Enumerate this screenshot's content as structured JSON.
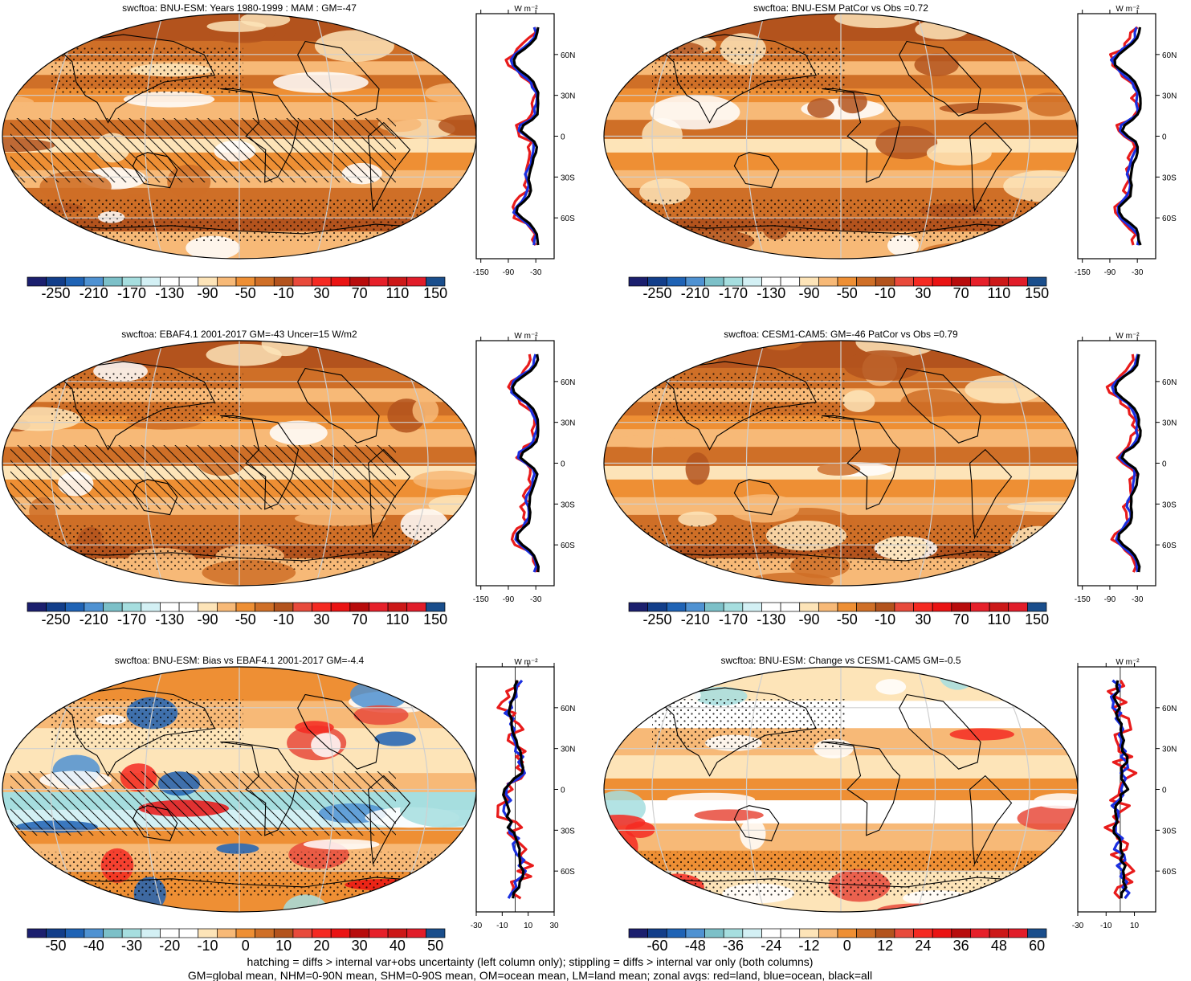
{
  "palettes": {
    "abs": [
      "#1b1f6e",
      "#123e8a",
      "#1f63b5",
      "#4f92d2",
      "#7cc0c8",
      "#a6dedf",
      "#d3f0f4",
      "#ffffff",
      "#ffffff",
      "#fde4b8",
      "#f7b977",
      "#ee8f34",
      "#cf6f27",
      "#b3531d",
      "#e84a3b",
      "#f52a22",
      "#ea1313",
      "#b80c0c",
      "#e6202a",
      "#cc1818",
      "#e11d2a",
      "#1a4e8c"
    ],
    "diff": [
      "#1b1f6e",
      "#123e8a",
      "#1f63b5",
      "#4f92d2",
      "#7cc0c8",
      "#a6dedf",
      "#d3f0f4",
      "#ffffff",
      "#ffffff",
      "#fde4b8",
      "#f7b977",
      "#ee8f34",
      "#cf6f27",
      "#b3531d",
      "#e84a3b",
      "#f52a22",
      "#ea1313",
      "#b80c0c",
      "#e6202a",
      "#cc1818",
      "#e11d2a",
      "#1a4e8c"
    ]
  },
  "panels": [
    {
      "title": "swcftoa: BNU-ESM: Years 1980-1999 : MAM : GM=-47",
      "palette": "abs",
      "hatch": true,
      "stipple": true,
      "kind": "abs",
      "cbar": [
        "-250",
        "-210",
        "-170",
        "-130",
        "-90",
        "-50",
        "-10",
        "30",
        "70",
        "110",
        "150"
      ],
      "zonal_ticks": [
        "-150",
        "-90",
        "-30"
      ],
      "zlim": [
        -160,
        10
      ]
    },
    {
      "title": "swcftoa: BNU-ESM PatCor vs Obs =0.72",
      "palette": "abs",
      "hatch": false,
      "stipple": true,
      "kind": "abs",
      "cbar": [
        "-250",
        "-210",
        "-170",
        "-130",
        "-90",
        "-50",
        "-10",
        "30",
        "70",
        "110",
        "150"
      ],
      "zonal_ticks": [
        "-150",
        "-90",
        "-30"
      ],
      "zlim": [
        -160,
        10
      ]
    },
    {
      "title": "swcftoa: EBAF4.1 2001-2017 GM=-43 Uncer=15 W/m2",
      "palette": "abs",
      "hatch": true,
      "stipple": true,
      "kind": "abs",
      "cbar": [
        "-250",
        "-210",
        "-170",
        "-130",
        "-90",
        "-50",
        "-10",
        "30",
        "70",
        "110",
        "150"
      ],
      "zonal_ticks": [
        "-150",
        "-90",
        "-30"
      ],
      "zlim": [
        -160,
        10
      ]
    },
    {
      "title": "swcftoa: CESM1-CAM5: GM=-46 PatCor vs Obs =0.79",
      "palette": "abs",
      "hatch": false,
      "stipple": true,
      "kind": "abs",
      "cbar": [
        "-250",
        "-210",
        "-170",
        "-130",
        "-90",
        "-50",
        "-10",
        "30",
        "70",
        "110",
        "150"
      ],
      "zonal_ticks": [
        "-150",
        "-90",
        "-30"
      ],
      "zlim": [
        -160,
        10
      ]
    },
    {
      "title": "swcftoa: BNU-ESM: Bias vs EBAF4.1 2001-2017 GM=-4.4",
      "palette": "diff",
      "hatch": true,
      "stipple": true,
      "kind": "bias",
      "cbar": [
        "-50",
        "-40",
        "-30",
        "-20",
        "-10",
        "0",
        "10",
        "20",
        "30",
        "40",
        "50"
      ],
      "zonal_ticks": [
        "-30",
        "-10",
        "10",
        "30"
      ],
      "zlim": [
        -30,
        30
      ]
    },
    {
      "title": "swcftoa: BNU-ESM: Change vs CESM1-CAM5 GM=-0.5",
      "palette": "diff",
      "hatch": false,
      "stipple": true,
      "kind": "change",
      "cbar": [
        "-60",
        "-48",
        "-36",
        "-24",
        "-12",
        "0",
        "12",
        "24",
        "36",
        "48",
        "60"
      ],
      "zonal_ticks": [
        "-30",
        "-10",
        "10"
      ],
      "zlim": [
        -30,
        25
      ]
    }
  ],
  "zonal_lat_labels": [
    "60N",
    "30N",
    "0",
    "30S",
    "60S"
  ],
  "zonal_units": "W m⁻²",
  "footer": [
    "hatching = diffs > internal var+obs uncertainty (left column only); stippling = diffs > internal var only (both columns)",
    "GM=global mean, NHM=0-90N mean, SHM=0-90S mean, OM=ocean mean, LM=land mean; zonal avgs: red=land, blue=ocean, black=all"
  ]
}
